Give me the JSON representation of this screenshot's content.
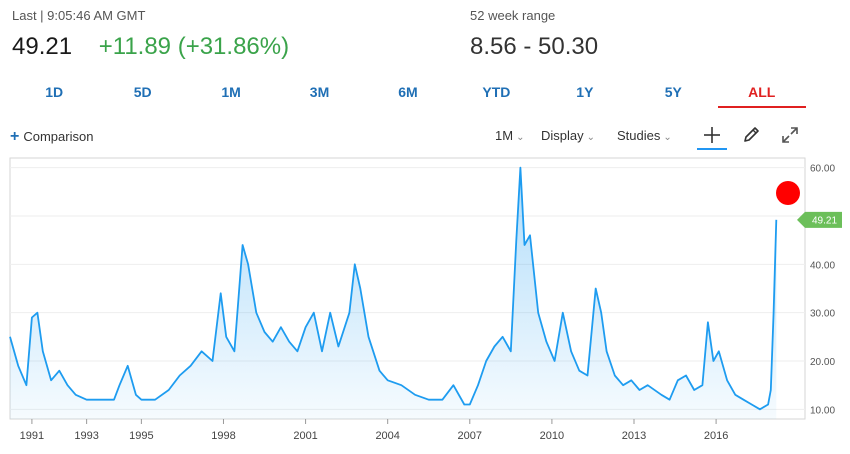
{
  "quote": {
    "last_label": "Last | 9:05:46 AM GMT",
    "price": "49.21",
    "change": "+11.89 (+31.86%)",
    "range_label": "52 week range",
    "range_value": "8.56 - 50.30"
  },
  "tabs": [
    {
      "label": "1D"
    },
    {
      "label": "5D"
    },
    {
      "label": "1M"
    },
    {
      "label": "3M"
    },
    {
      "label": "6M"
    },
    {
      "label": "YTD"
    },
    {
      "label": "1Y"
    },
    {
      "label": "5Y"
    },
    {
      "label": "ALL",
      "active": true
    }
  ],
  "toolbar": {
    "comparison": "Comparison",
    "interval": "1M",
    "display": "Display",
    "studies": "Studies",
    "icons": [
      "crosshair-icon",
      "pencil-icon",
      "expand-icon"
    ]
  },
  "colors": {
    "line": "#1e9cf0",
    "positive": "#3aa34a",
    "active_tab": "#e02020",
    "link": "#1f6fb5",
    "last_tag": "#6cbf5a",
    "marker": "#ff0000"
  },
  "chart_data": {
    "type": "area",
    "ylim": [
      8,
      62
    ],
    "xlim": [
      1990.2,
      2018.7
    ],
    "yticks": [
      "10.00",
      "20.00",
      "30.00",
      "40.00",
      "50.00",
      "60.00"
    ],
    "xticks": [
      "1991",
      "1993",
      "1995",
      "1998",
      "2001",
      "2004",
      "2007",
      "2010",
      "2013",
      "2016"
    ],
    "last_label": "49.21",
    "series": [
      {
        "points": [
          [
            1990.2,
            25
          ],
          [
            1990.5,
            19
          ],
          [
            1990.8,
            15
          ],
          [
            1991.0,
            29
          ],
          [
            1991.2,
            30
          ],
          [
            1991.4,
            22
          ],
          [
            1991.7,
            16
          ],
          [
            1992.0,
            18
          ],
          [
            1992.3,
            15
          ],
          [
            1992.6,
            13
          ],
          [
            1993.0,
            12
          ],
          [
            1993.5,
            12
          ],
          [
            1994.0,
            12
          ],
          [
            1994.2,
            15
          ],
          [
            1994.5,
            19
          ],
          [
            1994.8,
            13
          ],
          [
            1995.0,
            12
          ],
          [
            1995.5,
            12
          ],
          [
            1996.0,
            14
          ],
          [
            1996.4,
            17
          ],
          [
            1996.8,
            19
          ],
          [
            1997.2,
            22
          ],
          [
            1997.6,
            20
          ],
          [
            1997.9,
            34
          ],
          [
            1998.1,
            25
          ],
          [
            1998.4,
            22
          ],
          [
            1998.7,
            44
          ],
          [
            1998.9,
            40
          ],
          [
            1999.2,
            30
          ],
          [
            1999.5,
            26
          ],
          [
            1999.8,
            24
          ],
          [
            2000.1,
            27
          ],
          [
            2000.4,
            24
          ],
          [
            2000.7,
            22
          ],
          [
            2001.0,
            27
          ],
          [
            2001.3,
            30
          ],
          [
            2001.6,
            22
          ],
          [
            2001.9,
            30
          ],
          [
            2002.2,
            23
          ],
          [
            2002.6,
            30
          ],
          [
            2002.8,
            40
          ],
          [
            2003.0,
            35
          ],
          [
            2003.3,
            25
          ],
          [
            2003.7,
            18
          ],
          [
            2004.0,
            16
          ],
          [
            2004.5,
            15
          ],
          [
            2005.0,
            13
          ],
          [
            2005.5,
            12
          ],
          [
            2006.0,
            12
          ],
          [
            2006.4,
            15
          ],
          [
            2006.8,
            11
          ],
          [
            2007.0,
            11
          ],
          [
            2007.3,
            15
          ],
          [
            2007.6,
            20
          ],
          [
            2007.9,
            23
          ],
          [
            2008.2,
            25
          ],
          [
            2008.5,
            22
          ],
          [
            2008.7,
            45
          ],
          [
            2008.85,
            60
          ],
          [
            2009.0,
            44
          ],
          [
            2009.2,
            46
          ],
          [
            2009.5,
            30
          ],
          [
            2009.8,
            24
          ],
          [
            2010.1,
            20
          ],
          [
            2010.4,
            30
          ],
          [
            2010.7,
            22
          ],
          [
            2011.0,
            18
          ],
          [
            2011.3,
            17
          ],
          [
            2011.6,
            35
          ],
          [
            2011.8,
            30
          ],
          [
            2012.0,
            22
          ],
          [
            2012.3,
            17
          ],
          [
            2012.6,
            15
          ],
          [
            2012.9,
            16
          ],
          [
            2013.2,
            14
          ],
          [
            2013.5,
            15
          ],
          [
            2014.0,
            13
          ],
          [
            2014.3,
            12
          ],
          [
            2014.6,
            16
          ],
          [
            2014.9,
            17
          ],
          [
            2015.2,
            14
          ],
          [
            2015.5,
            15
          ],
          [
            2015.7,
            28
          ],
          [
            2015.9,
            20
          ],
          [
            2016.1,
            22
          ],
          [
            2016.4,
            16
          ],
          [
            2016.7,
            13
          ],
          [
            2017.0,
            12
          ],
          [
            2017.3,
            11
          ],
          [
            2017.6,
            10
          ],
          [
            2017.9,
            11
          ],
          [
            2018.0,
            14
          ],
          [
            2018.1,
            30
          ],
          [
            2018.2,
            49.21
          ]
        ]
      }
    ]
  }
}
